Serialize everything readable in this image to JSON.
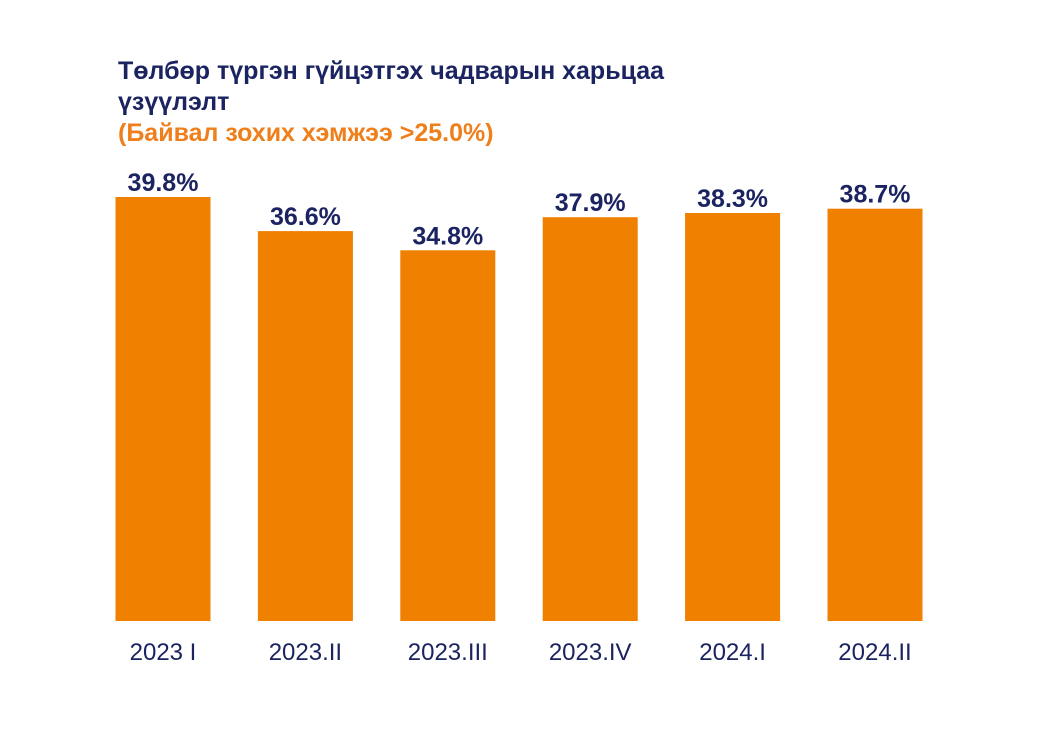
{
  "chart_data": {
    "type": "bar",
    "title": "Төлбөр түргэн гүйцэтгэх чадварын харьцаа үзүүлэлт",
    "subtitle": "(Байвал зохих хэмжээ >25.0%)",
    "categories": [
      "2023 I",
      "2023.II",
      "2023.III",
      "2023.IV",
      "2024.I",
      "2024.II"
    ],
    "values": [
      39.8,
      36.6,
      34.8,
      37.9,
      38.3,
      38.7
    ],
    "data_labels": [
      "39.8%",
      "36.6%",
      "34.8%",
      "37.9%",
      "38.3%",
      "38.7%"
    ],
    "ylim": [
      0,
      39.8
    ],
    "grid": false,
    "legend": "none",
    "bar_color": "#f08000",
    "label_color": "#1b2360",
    "subtitle_color": "#ef7f1a"
  }
}
